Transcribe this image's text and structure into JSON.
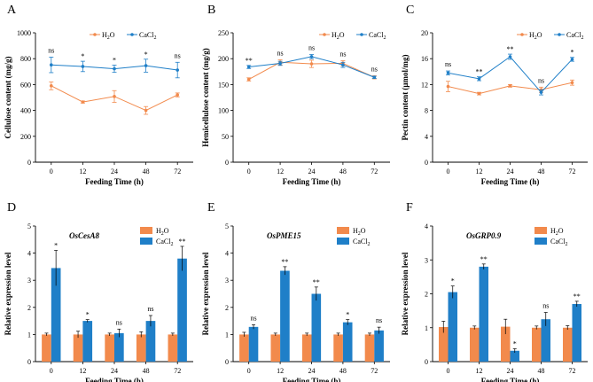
{
  "colors": {
    "h2o": "#F28A4C",
    "cacl2": "#1F7FC8"
  },
  "chart_data": [
    {
      "panel": "A",
      "type": "line",
      "ylabel": "Cellulose content (mg/g)",
      "xlabel": "Feeding Time (h)",
      "categories": [
        "0",
        "12",
        "24",
        "48",
        "72"
      ],
      "ylim": [
        0,
        1000
      ],
      "yticks": [
        "0",
        "200",
        "400",
        "600",
        "800",
        "1000"
      ],
      "legend": [
        "H₂O",
        "CaCl₂"
      ],
      "legend_position": "top-center",
      "series": [
        {
          "name": "H₂O",
          "values": [
            590,
            465,
            508,
            400,
            520
          ],
          "errors": [
            30,
            8,
            45,
            30,
            15
          ]
        },
        {
          "name": "CaCl₂",
          "values": [
            752,
            740,
            722,
            746,
            712
          ],
          "errors": [
            60,
            40,
            28,
            50,
            60
          ]
        }
      ],
      "significance": [
        "ns",
        "*",
        "*",
        "*",
        "ns"
      ]
    },
    {
      "panel": "B",
      "type": "line",
      "ylabel": "Hemicellulose content (mg/g)",
      "xlabel": "Feeding Time (h)",
      "categories": [
        "0",
        "12",
        "24",
        "48",
        "72"
      ],
      "ylim": [
        0,
        250
      ],
      "yticks": [
        "0",
        "50",
        "100",
        "150",
        "200",
        "250"
      ],
      "legend": [
        "H₂O",
        "CaCl₂"
      ],
      "legend_position": "top-right",
      "series": [
        {
          "name": "H₂O",
          "values": [
            160,
            193,
            190,
            191,
            164
          ],
          "errors": [
            3,
            5,
            7,
            5,
            3
          ]
        },
        {
          "name": "CaCl₂",
          "values": [
            184,
            191,
            204,
            188,
            164
          ],
          "errors": [
            3,
            4,
            4,
            5,
            2
          ]
        }
      ],
      "significance": [
        "**",
        "ns",
        "ns",
        "ns",
        "ns"
      ]
    },
    {
      "panel": "C",
      "type": "line",
      "ylabel": "Pectin content (μmol/mg)",
      "xlabel": "Feeding Time (h)",
      "categories": [
        "0",
        "12",
        "24",
        "48",
        "72"
      ],
      "ylim": [
        0,
        20
      ],
      "yticks": [
        "0",
        "4",
        "8",
        "12",
        "16",
        "20"
      ],
      "legend": [
        "H₂O",
        "CaCl₂"
      ],
      "legend_position": "top-right",
      "series": [
        {
          "name": "H₂O",
          "values": [
            11.7,
            10.6,
            11.8,
            11.2,
            12.3
          ],
          "errors": [
            0.8,
            0.2,
            0.2,
            0.4,
            0.4
          ]
        },
        {
          "name": "CaCl₂",
          "values": [
            13.8,
            12.9,
            16.3,
            10.8,
            15.9
          ],
          "errors": [
            0.3,
            0.3,
            0.4,
            0.4,
            0.3
          ]
        }
      ],
      "significance": [
        "ns",
        "**",
        "**",
        "ns",
        "*"
      ]
    },
    {
      "panel": "D",
      "type": "bar",
      "gene": "OsCesA8",
      "ylabel": "Relative expression level",
      "xlabel": "Feeding Time (h)",
      "categories": [
        "0",
        "12",
        "24",
        "48",
        "72"
      ],
      "ylim": [
        0,
        5
      ],
      "yticks": [
        "0",
        "1",
        "2",
        "3",
        "4",
        "5"
      ],
      "legend": [
        "H₂O",
        "CaCl₂"
      ],
      "legend_position": "top-right",
      "series": [
        {
          "name": "H₂O",
          "values": [
            1.0,
            1.0,
            1.0,
            1.0,
            1.0
          ],
          "errors": [
            0.05,
            0.12,
            0.05,
            0.1,
            0.05
          ]
        },
        {
          "name": "CaCl₂",
          "values": [
            3.45,
            1.5,
            1.05,
            1.5,
            3.8
          ],
          "errors": [
            0.65,
            0.05,
            0.15,
            0.2,
            0.45
          ]
        }
      ],
      "significance": [
        "*",
        "*",
        "ns",
        "ns",
        "**"
      ]
    },
    {
      "panel": "E",
      "type": "bar",
      "gene": "OsPME15",
      "ylabel": "Relative expression level",
      "xlabel": "Feeding Time (h)",
      "categories": [
        "0",
        "12",
        "24",
        "48",
        "72"
      ],
      "ylim": [
        0,
        5
      ],
      "yticks": [
        "0",
        "1",
        "2",
        "3",
        "4",
        "5"
      ],
      "legend": [
        "H₂O",
        "CaCl₂"
      ],
      "legend_position": "top-right",
      "series": [
        {
          "name": "H₂O",
          "values": [
            1.0,
            1.0,
            1.0,
            1.0,
            1.0
          ],
          "errors": [
            0.08,
            0.05,
            0.05,
            0.05,
            0.05
          ]
        },
        {
          "name": "CaCl₂",
          "values": [
            1.28,
            3.35,
            2.5,
            1.45,
            1.15
          ],
          "errors": [
            0.08,
            0.15,
            0.25,
            0.1,
            0.12
          ]
        }
      ],
      "significance": [
        "ns",
        "**",
        "**",
        "*",
        "ns"
      ]
    },
    {
      "panel": "F",
      "type": "bar",
      "gene": "OsGRP0.9",
      "ylabel": "Relative expression level",
      "xlabel": "Feeding Time (h)",
      "categories": [
        "0",
        "12",
        "24",
        "48",
        "72"
      ],
      "ylim": [
        0,
        4
      ],
      "yticks": [
        "0",
        "1",
        "2",
        "3",
        "4"
      ],
      "legend": [
        "H₂O",
        "CaCl₂"
      ],
      "legend_position": "top-right",
      "series": [
        {
          "name": "H₂O",
          "values": [
            1.02,
            1.0,
            1.03,
            1.0,
            1.0
          ],
          "errors": [
            0.17,
            0.05,
            0.22,
            0.05,
            0.06
          ]
        },
        {
          "name": "CaCl₂",
          "values": [
            2.05,
            2.8,
            0.32,
            1.25,
            1.7
          ],
          "errors": [
            0.18,
            0.08,
            0.06,
            0.2,
            0.08
          ]
        }
      ],
      "significance": [
        "*",
        "**",
        "*",
        "ns",
        "**"
      ]
    }
  ]
}
